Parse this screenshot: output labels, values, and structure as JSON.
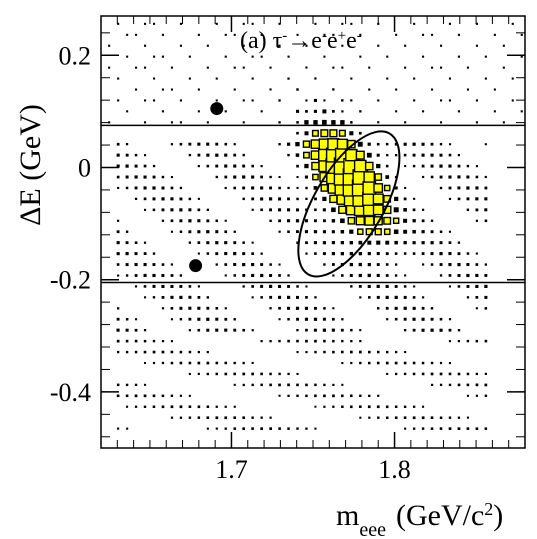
{
  "chart_data": {
    "type": "scatter",
    "annotation": {
      "prefix": "(a) ",
      "process": [
        {
          "text": "τ",
          "sup": "-"
        },
        {
          "text": "→",
          "sup": ""
        },
        {
          "text": "e",
          "sup": "-"
        },
        {
          "text": "e",
          "sup": "+"
        },
        {
          "text": "e",
          "sup": "-"
        }
      ]
    },
    "x_axis": {
      "label_main": "m",
      "label_sub": "eee",
      "label_unit_open": "(GeV/c",
      "label_unit_sup": "2",
      "label_unit_close": ")",
      "range": [
        1.62,
        1.88
      ],
      "ticks": [
        {
          "value": 1.7,
          "label": "1.7"
        },
        {
          "value": 1.8,
          "label": "1.8"
        }
      ]
    },
    "y_axis": {
      "label": "ΔE (GeV)",
      "range": [
        -0.5,
        0.27
      ],
      "ticks": [
        {
          "value": 0.2,
          "label": "0.2"
        },
        {
          "value": 0.0,
          "label": "0"
        },
        {
          "value": -0.2,
          "label": "-0.2"
        },
        {
          "value": -0.4,
          "label": "-0.4"
        }
      ]
    },
    "signal_band": {
      "dE_high": 0.075,
      "dE_low": -0.205
    },
    "signal_ellipse": {
      "center_m": 1.772,
      "center_dE": -0.065,
      "semi_major_dE": 0.145,
      "semi_minor_m": 0.017,
      "tilt_deg": -30
    },
    "data_events": [
      {
        "m": 1.691,
        "dE": 0.105
      },
      {
        "m": 1.678,
        "dE": -0.175
      }
    ],
    "mc_box_grid": {
      "m_start": 1.625,
      "m_step": 0.0055,
      "dE_start": -0.485,
      "dE_step": 0.0195
    },
    "colors": {
      "mc_fill": "#ffff00",
      "axis": "#000000",
      "data": "#000000"
    }
  }
}
